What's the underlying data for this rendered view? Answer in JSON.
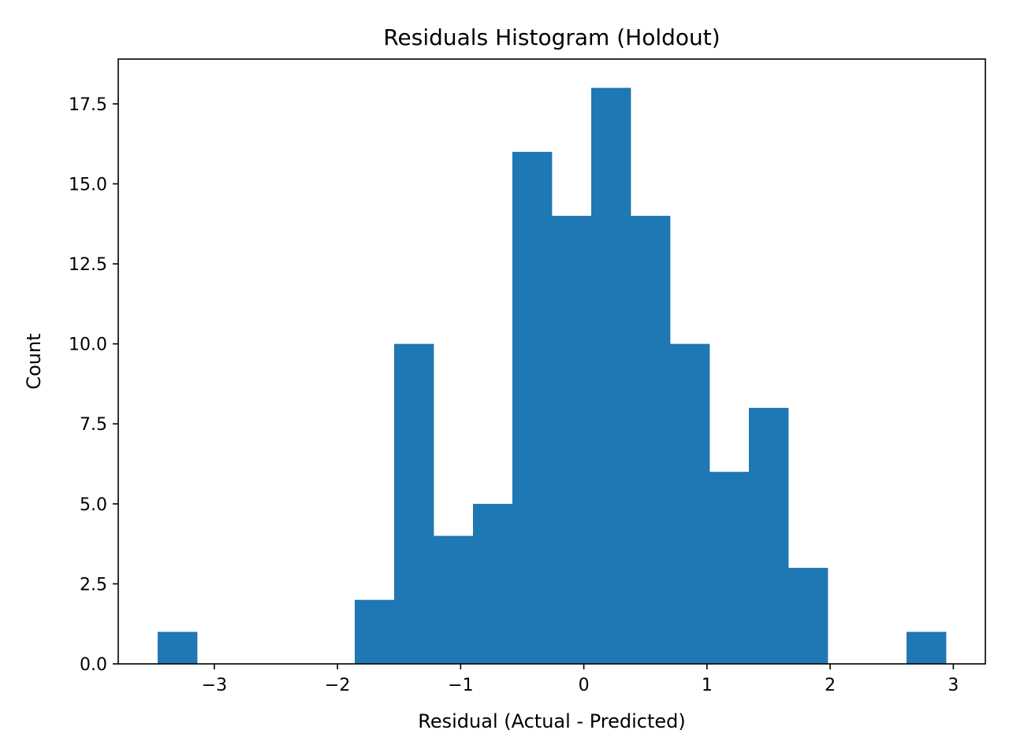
{
  "chart_data": {
    "type": "histogram",
    "title": "Residuals Histogram (Holdout)",
    "xlabel": "Residual (Actual - Predicted)",
    "ylabel": "Count",
    "bin_edges": [
      -3.46,
      -3.14,
      -2.82,
      -2.5,
      -2.18,
      -1.86,
      -1.54,
      -1.22,
      -0.9,
      -0.58,
      -0.26,
      0.06,
      0.38,
      0.7,
      1.02,
      1.34,
      1.66,
      1.98,
      2.3,
      2.62,
      2.94
    ],
    "counts": [
      1,
      0,
      0,
      0,
      0,
      2,
      10,
      4,
      5,
      16,
      14,
      18,
      14,
      10,
      6,
      8,
      3,
      0,
      0,
      1
    ],
    "xlim": [
      -3.78,
      3.26
    ],
    "ylim": [
      0,
      18.9
    ],
    "xticks": [
      -3,
      -2,
      -1,
      0,
      1,
      2,
      3
    ],
    "xtick_labels": [
      "−3",
      "−2",
      "−1",
      "0",
      "1",
      "2",
      "3"
    ],
    "yticks": [
      0,
      2.5,
      5,
      7.5,
      10,
      12.5,
      15,
      17.5
    ],
    "ytick_labels": [
      "0.0",
      "2.5",
      "5.0",
      "7.5",
      "10.0",
      "12.5",
      "15.0",
      "17.5"
    ],
    "bar_color": "#1f77b4",
    "grid": false,
    "legend": false
  }
}
